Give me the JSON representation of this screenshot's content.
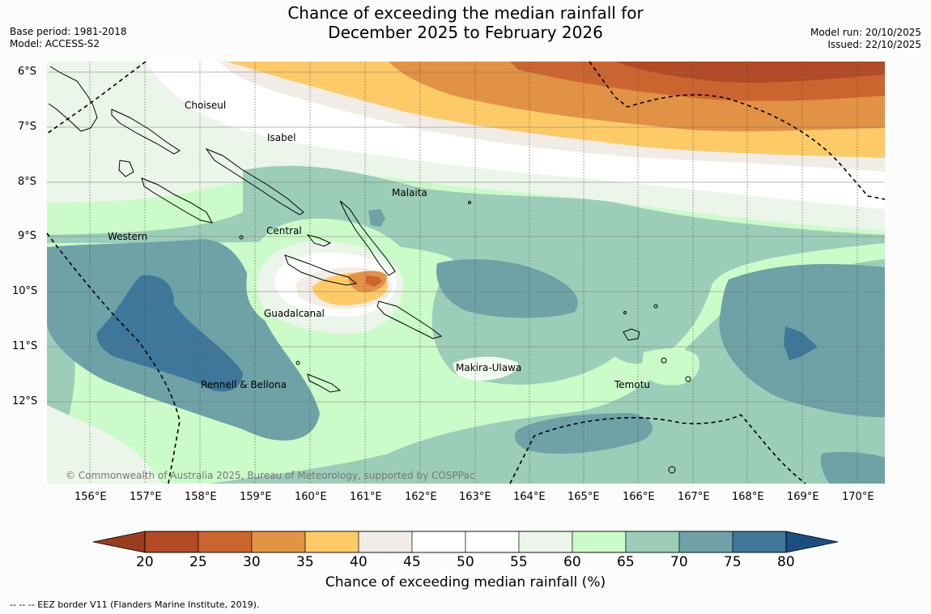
{
  "header": {
    "title_line1": "Chance of exceeding the median rainfall for",
    "title_line2": "December 2025 to February 2026",
    "base_period": "Base period: 1981-2018",
    "model": "Model: ACCESS-S2",
    "model_run": "Model run: 20/10/2025",
    "issued": "Issued: 22/10/2025"
  },
  "map": {
    "lat_labels": [
      "6°S",
      "7°S",
      "8°S",
      "9°S",
      "10°S",
      "11°S",
      "12°S"
    ],
    "lon_labels": [
      "156°E",
      "157°E",
      "158°E",
      "159°E",
      "160°E",
      "161°E",
      "162°E",
      "163°E",
      "164°E",
      "165°E",
      "166°E",
      "167°E",
      "168°E",
      "169°E",
      "170°E"
    ],
    "provinces": [
      "Choiseul",
      "Isabel",
      "Malaita",
      "Western",
      "Central",
      "Guadalcanal",
      "Makira-Ulawa",
      "Rennell & Bellona",
      "Temotu"
    ],
    "copyright": "© Commonwealth of Australia 2025, Bureau of Meteorology, supported by COSPPac"
  },
  "colorbar": {
    "ticks": [
      "20",
      "25",
      "30",
      "35",
      "40",
      "45",
      "50",
      "55",
      "60",
      "65",
      "70",
      "75",
      "80"
    ],
    "colors": [
      "#b24a26",
      "#cc6430",
      "#e29244",
      "#fccb68",
      "#f2ece6",
      "#ffffff",
      "#ffffff",
      "#ecf5ea",
      "#cbfbc8",
      "#9ccdb8",
      "#6ea2a6",
      "#3e7799"
    ],
    "under_color": "#9a3d1f",
    "over_color": "#1b4f80",
    "title": "Chance of exceeding median rainfall (%)"
  },
  "footer": {
    "eez_note": "--  --  -- EEZ border V11 (Flanders Marine Institute, 2019)."
  }
}
